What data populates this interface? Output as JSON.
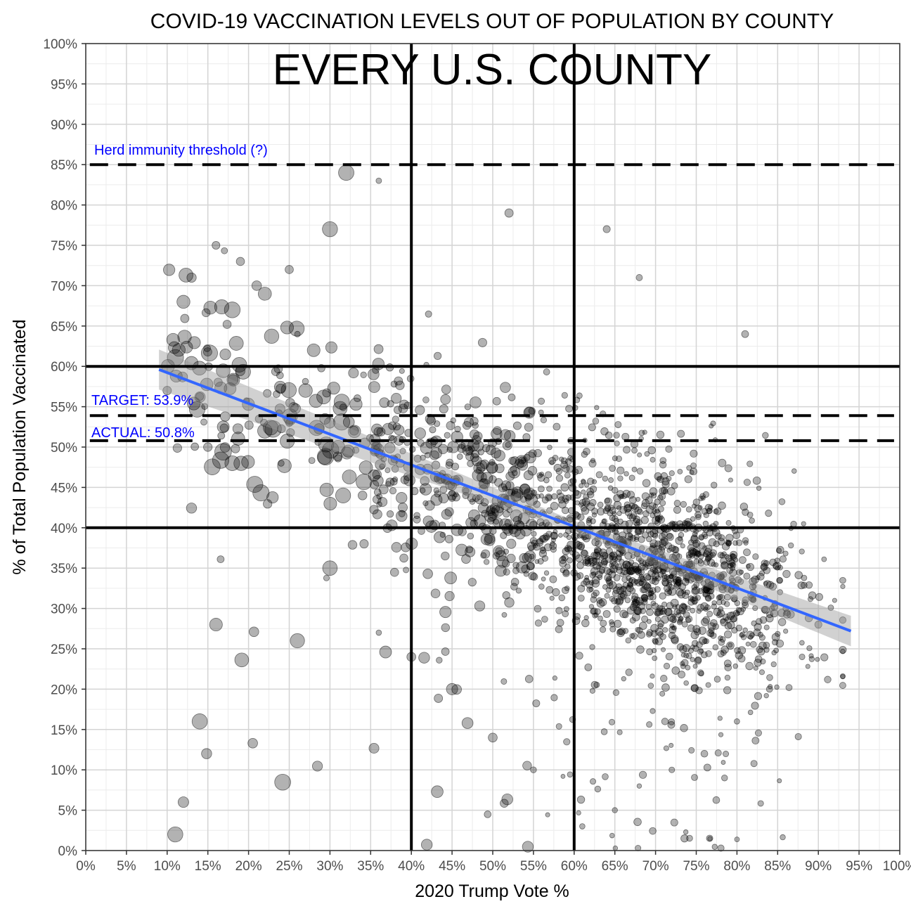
{
  "chart_data": {
    "type": "scatter",
    "title": "COVID-19 VACCINATION LEVELS OUT OF POPULATION BY COUNTY",
    "subtitle": "EVERY U.S. COUNTY",
    "xlabel": "2020 Trump Vote %",
    "ylabel": "% of Total Population Vaccinated",
    "xlim": [
      0,
      100
    ],
    "ylim": [
      0,
      100
    ],
    "x_ticks": [
      "0%",
      "5%",
      "10%",
      "15%",
      "20%",
      "25%",
      "30%",
      "35%",
      "40%",
      "45%",
      "50%",
      "55%",
      "60%",
      "65%",
      "70%",
      "75%",
      "80%",
      "85%",
      "90%",
      "95%",
      "100%"
    ],
    "y_ticks": [
      "0%",
      "5%",
      "10%",
      "15%",
      "20%",
      "25%",
      "30%",
      "35%",
      "40%",
      "45%",
      "50%",
      "55%",
      "60%",
      "65%",
      "70%",
      "75%",
      "80%",
      "85%",
      "90%",
      "95%",
      "100%"
    ],
    "grid": true,
    "reference_lines": {
      "vertical_solid": [
        40,
        60
      ],
      "horizontal_solid": [
        40,
        60
      ],
      "horizontal_dashed": [
        85,
        53.9,
        50.8
      ]
    },
    "annotations": [
      {
        "text": "Herd immunity threshold (?)",
        "x": 1,
        "y": 85
      },
      {
        "text": "TARGET: 53.9%",
        "x": 0.5,
        "y": 53.9
      },
      {
        "text": "ACTUAL: 50.8%",
        "x": 0.5,
        "y": 50.8
      }
    ],
    "trend_line": {
      "x": [
        9,
        94
      ],
      "y": [
        59.6,
        27.2
      ],
      "color": "#3366FF"
    },
    "annotation_color": "#0000FF",
    "point_color": "#000000",
    "point_opacity": 0.3,
    "scatter_cluster_approx": [
      {
        "x": 10,
        "y": 57
      },
      {
        "x": 12,
        "y": 68
      },
      {
        "x": 13,
        "y": 71
      },
      {
        "x": 16,
        "y": 75
      },
      {
        "x": 18,
        "y": 67
      },
      {
        "x": 19,
        "y": 73
      },
      {
        "x": 21,
        "y": 70
      },
      {
        "x": 22,
        "y": 69
      },
      {
        "x": 25,
        "y": 72
      },
      {
        "x": 26,
        "y": 64
      },
      {
        "x": 27,
        "y": 57
      },
      {
        "x": 28,
        "y": 62
      },
      {
        "x": 30,
        "y": 77
      },
      {
        "x": 32,
        "y": 84
      },
      {
        "x": 36,
        "y": 83
      },
      {
        "x": 52,
        "y": 79
      },
      {
        "x": 64,
        "y": 77
      },
      {
        "x": 68,
        "y": 71
      },
      {
        "x": 81,
        "y": 64
      },
      {
        "x": 25,
        "y": 53
      },
      {
        "x": 22,
        "y": 52
      },
      {
        "x": 15,
        "y": 50
      },
      {
        "x": 18,
        "y": 48
      },
      {
        "x": 24,
        "y": 48
      },
      {
        "x": 31,
        "y": 50
      },
      {
        "x": 34,
        "y": 44
      },
      {
        "x": 38,
        "y": 46
      },
      {
        "x": 42,
        "y": 49
      },
      {
        "x": 45,
        "y": 44
      },
      {
        "x": 50,
        "y": 46
      },
      {
        "x": 55,
        "y": 42
      },
      {
        "x": 58,
        "y": 41
      },
      {
        "x": 62,
        "y": 40
      },
      {
        "x": 66,
        "y": 38
      },
      {
        "x": 70,
        "y": 37
      },
      {
        "x": 74,
        "y": 35
      },
      {
        "x": 78,
        "y": 34
      },
      {
        "x": 82,
        "y": 32
      },
      {
        "x": 86,
        "y": 30
      },
      {
        "x": 90,
        "y": 28
      },
      {
        "x": 92,
        "y": 31
      },
      {
        "x": 88,
        "y": 24
      },
      {
        "x": 84,
        "y": 20
      },
      {
        "x": 80,
        "y": 16
      },
      {
        "x": 76,
        "y": 12
      },
      {
        "x": 72,
        "y": 10
      },
      {
        "x": 68,
        "y": 8
      },
      {
        "x": 65,
        "y": 5
      },
      {
        "x": 61,
        "y": 3
      },
      {
        "x": 55,
        "y": 10
      },
      {
        "x": 50,
        "y": 14
      },
      {
        "x": 45,
        "y": 20
      },
      {
        "x": 40,
        "y": 24
      },
      {
        "x": 36,
        "y": 27
      },
      {
        "x": 30,
        "y": 35
      },
      {
        "x": 26,
        "y": 26
      },
      {
        "x": 16,
        "y": 28
      },
      {
        "x": 14,
        "y": 16
      },
      {
        "x": 12,
        "y": 6
      },
      {
        "x": 11,
        "y": 2
      }
    ]
  }
}
